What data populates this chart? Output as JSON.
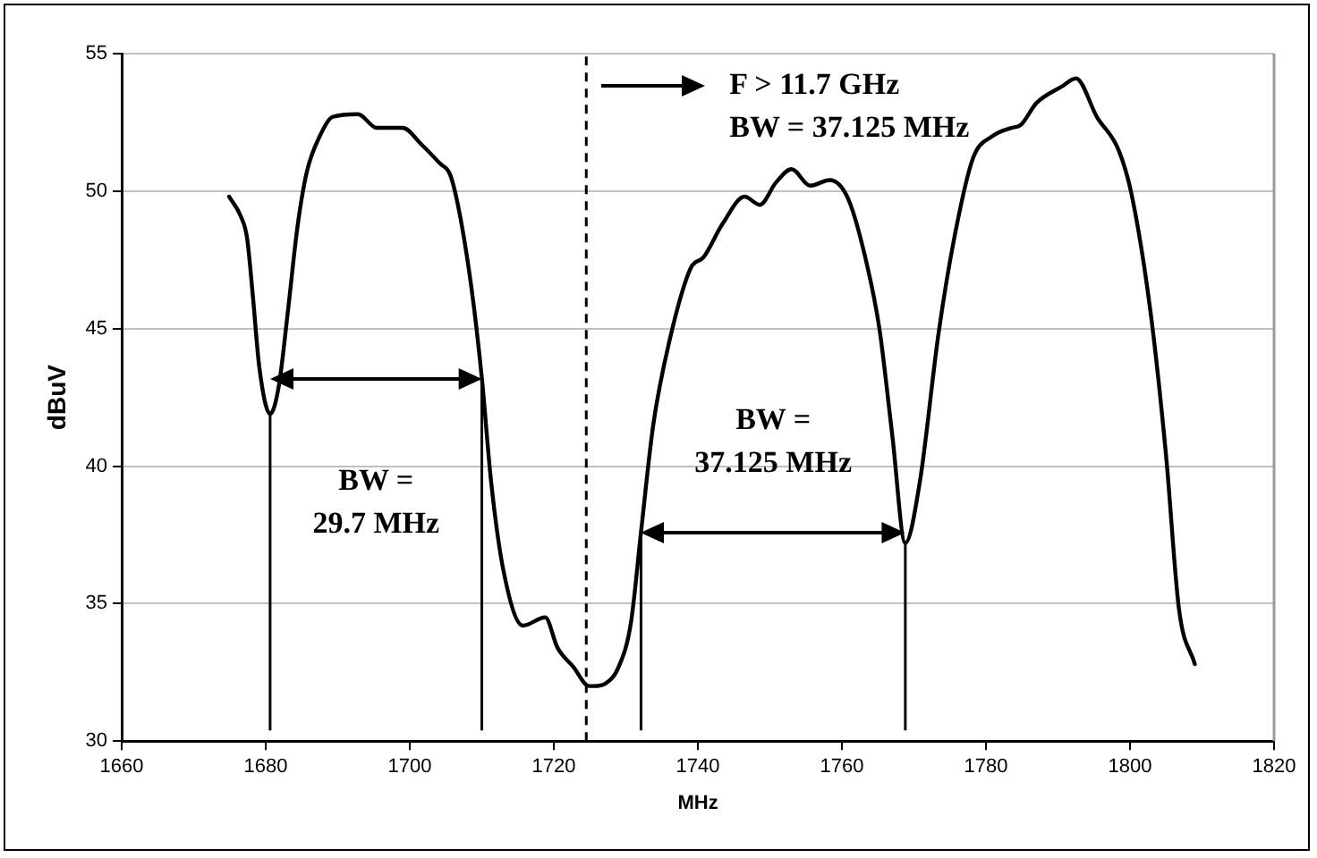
{
  "chart_data": {
    "type": "line",
    "xlabel": "MHz",
    "ylabel": "dBuV",
    "xlim": [
      1660,
      1820
    ],
    "xticks": [
      1660,
      1680,
      1700,
      1720,
      1740,
      1760,
      1780,
      1800,
      1820
    ],
    "ylim": [
      30,
      55
    ],
    "yticks": [
      30,
      35,
      40,
      45,
      50,
      55
    ],
    "grid": "y",
    "legend": false,
    "marker": "none",
    "line_style": "solid",
    "series": [
      {
        "color": "#000000",
        "x": [
          1674.9,
          1676.5,
          1677.4,
          1678.2,
          1679.1,
          1680.6,
          1681.8,
          1683.1,
          1684.4,
          1685.7,
          1687.5,
          1689.3,
          1692.8,
          1695.4,
          1699.0,
          1701.6,
          1704.2,
          1705.6,
          1706.9,
          1708.6,
          1710.0,
          1711.3,
          1713.0,
          1715.7,
          1718.8,
          1720.5,
          1722.7,
          1724.9,
          1725.5,
          1727.2,
          1729.0,
          1730.7,
          1732.1,
          1733.8,
          1736.0,
          1739.0,
          1740.8,
          1743.4,
          1746.5,
          1748.6,
          1750.8,
          1753.0,
          1755.6,
          1758.3,
          1760.9,
          1763.5,
          1765.2,
          1767.0,
          1768.8,
          1770.8,
          1773.4,
          1775.6,
          1778.2,
          1780.9,
          1783.5,
          1784.8,
          1787.0,
          1790.5,
          1792.5,
          1795.4,
          1798.4,
          1800.2,
          1802.8,
          1805.0,
          1806.8,
          1809.0
        ],
        "values": [
          49.8,
          49.1,
          48.3,
          46.2,
          43.6,
          41.9,
          42.9,
          45.7,
          48.7,
          50.7,
          52.0,
          52.7,
          52.8,
          52.3,
          52.3,
          51.7,
          51.0,
          50.6,
          49.2,
          46.4,
          43.2,
          39.4,
          36.2,
          34.2,
          34.5,
          33.4,
          32.7,
          32.0,
          32.0,
          32.1,
          32.7,
          34.3,
          37.6,
          41.5,
          44.5,
          47.2,
          47.6,
          48.8,
          49.8,
          49.5,
          50.3,
          50.8,
          50.2,
          50.4,
          49.7,
          47.3,
          45.0,
          41.1,
          37.2,
          39.4,
          44.8,
          48.3,
          51.2,
          52.0,
          52.3,
          52.4,
          53.2,
          53.8,
          54.1,
          52.7,
          51.5,
          49.9,
          45.7,
          40.4,
          34.8,
          32.8
        ]
      }
    ],
    "ref_lines": [
      {
        "axis": "x",
        "value": 1680.6,
        "color": "#000000",
        "line_style": "solid"
      },
      {
        "axis": "x",
        "value": 1710.0,
        "color": "#000000",
        "line_style": "solid"
      },
      {
        "axis": "x",
        "value": 1732.1,
        "color": "#000000",
        "line_style": "solid"
      },
      {
        "axis": "x",
        "value": 1768.8,
        "color": "#000000",
        "line_style": "solid"
      },
      {
        "axis": "x",
        "value": 1724.5,
        "color": "#000000",
        "line_style": "dashed"
      }
    ],
    "annotations": [
      "BW =\n29.7 MHz",
      "BW =\n37.125 MHz",
      "F > 11.7 GHz\nBW = 37.125 MHz"
    ]
  }
}
